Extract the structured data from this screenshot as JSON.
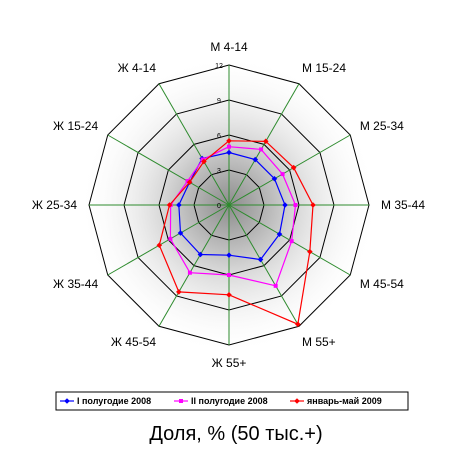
{
  "caption": "Доля, % (50 тыс.+)",
  "chart_data": {
    "type": "radar",
    "categories": [
      "М 4-14",
      "М 15-24",
      "М 25-34",
      "М 35-44",
      "М 45-54",
      "М 55+",
      "Ж 55+",
      "Ж 45-54",
      "Ж 35-44",
      "Ж 25-34",
      "Ж 15-24",
      "Ж 4-14"
    ],
    "ticks": [
      0,
      3,
      6,
      9,
      12
    ],
    "range": [
      0,
      12
    ],
    "series": [
      {
        "name": "I полугодие 2008",
        "color": "#0000ff",
        "marker": "diamond",
        "values": [
          4.5,
          4.5,
          4.5,
          4.8,
          5.0,
          5.4,
          4.3,
          4.9,
          4.8,
          4.3,
          3.9,
          4.6
        ]
      },
      {
        "name": "II полугодие 2008",
        "color": "#ff00ff",
        "marker": "square",
        "values": [
          5.0,
          5.5,
          5.3,
          5.7,
          6.2,
          8.0,
          6.0,
          6.7,
          5.8,
          5.0,
          4.1,
          4.5
        ]
      },
      {
        "name": "январь-май 2009",
        "color": "#ff0000",
        "marker": "diamond",
        "values": [
          5.5,
          6.3,
          6.4,
          7.2,
          8.0,
          11.8,
          7.7,
          8.6,
          6.9,
          5.1,
          3.9,
          4.3
        ]
      }
    ]
  }
}
